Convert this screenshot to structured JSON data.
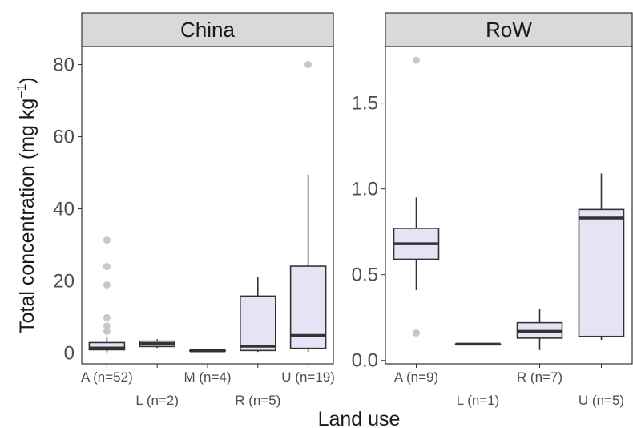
{
  "chart_data": {
    "type": "boxplot",
    "ylabel_main": "Total concentration (mg kg",
    "ylabel_sup": "−1",
    "ylabel_close": ")",
    "xlabel": "Land use",
    "outlier_color": "#c8c8c8",
    "box_fill": "#e6e3f5",
    "panels": [
      {
        "name": "China",
        "ylim": [
          -3,
          85
        ],
        "yticks": [
          0,
          20,
          40,
          60,
          80
        ],
        "ytick_labels": [
          "0",
          "20",
          "40",
          "60",
          "80"
        ],
        "boxes": [
          {
            "label": "A (n=52)",
            "lower": 0.2,
            "q1": 0.9,
            "median": 1.4,
            "q3": 2.9,
            "upper": 4.5,
            "outliers": [
              6.0,
              7.5,
              9.8,
              18.9,
              24.0,
              31.3
            ]
          },
          {
            "label": "L (n=2)",
            "lower": 1.4,
            "q1": 1.8,
            "median": 2.6,
            "q3": 3.3,
            "upper": 3.8,
            "outliers": []
          },
          {
            "label": "M (n=4)",
            "lower": 0.4,
            "q1": 0.5,
            "median": 0.6,
            "q3": 0.75,
            "upper": 0.9,
            "outliers": []
          },
          {
            "label": "R (n=5)",
            "lower": 0.3,
            "q1": 0.7,
            "median": 1.9,
            "q3": 15.8,
            "upper": 21.2,
            "outliers": []
          },
          {
            "label": "U (n=19)",
            "lower": 0.3,
            "q1": 1.3,
            "median": 4.9,
            "q3": 24.1,
            "upper": 49.5,
            "outliers": [
              80.0
            ]
          }
        ]
      },
      {
        "name": "RoW",
        "ylim": [
          -0.02,
          1.83
        ],
        "yticks": [
          0.0,
          0.5,
          1.0,
          1.5
        ],
        "ytick_labels": [
          "0.0",
          "0.5",
          "1.0",
          "1.5"
        ],
        "boxes": [
          {
            "label": "A (n=9)",
            "lower": 0.41,
            "q1": 0.59,
            "median": 0.68,
            "q3": 0.77,
            "upper": 0.95,
            "outliers": [
              0.16,
              1.75
            ]
          },
          {
            "label": "L (n=1)",
            "lower": 0.095,
            "q1": 0.095,
            "median": 0.095,
            "q3": 0.095,
            "upper": 0.095,
            "outliers": []
          },
          {
            "label": "R (n=7)",
            "lower": 0.06,
            "q1": 0.13,
            "median": 0.17,
            "q3": 0.22,
            "upper": 0.3,
            "outliers": []
          },
          {
            "label": "U (n=5)",
            "lower": 0.12,
            "q1": 0.14,
            "median": 0.83,
            "q3": 0.88,
            "upper": 1.09,
            "outliers": []
          }
        ]
      }
    ]
  }
}
